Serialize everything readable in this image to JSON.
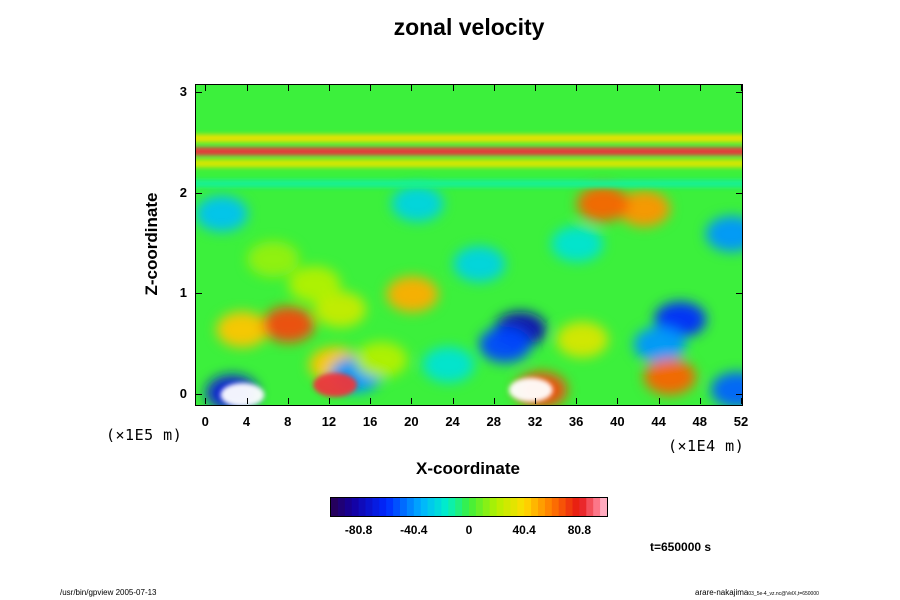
{
  "chart_data": {
    "type": "heatmap",
    "title": "zonal velocity",
    "xlabel": "X-coordinate",
    "ylabel": "Z-coordinate",
    "x_ticks": [
      "0",
      "4",
      "8",
      "12",
      "16",
      "20",
      "24",
      "28",
      "32",
      "36",
      "40",
      "44",
      "48",
      "52"
    ],
    "y_ticks": [
      "0",
      "1",
      "2",
      "3"
    ],
    "x_ticks_values": [
      0,
      4,
      8,
      12,
      16,
      20,
      24,
      28,
      32,
      36,
      40,
      44,
      48,
      52
    ],
    "y_ticks_values": [
      0,
      1,
      2,
      3
    ],
    "x_scale_text": "(×1E4 m)",
    "y_scale_text": "(×1E5 m)",
    "xlim": [
      -1,
      52
    ],
    "ylim": [
      -0.1,
      3.08
    ],
    "colorbar": {
      "min": -101,
      "max": 101,
      "tick_values": [
        -80.8,
        -40.4,
        0,
        40.4,
        80.8
      ],
      "tick_labels": [
        "-80.8",
        "-40.4",
        "0",
        "40.4",
        "80.8"
      ]
    },
    "features": [
      {
        "kind": "band",
        "z": 2.42,
        "value": 85
      },
      {
        "kind": "band",
        "z": 2.55,
        "value": 35
      },
      {
        "kind": "band",
        "z": 2.3,
        "value": 30
      },
      {
        "kind": "band",
        "z": 2.1,
        "value": -10
      },
      {
        "kind": "blob",
        "x": 3.5,
        "z": 0.0,
        "value": -101
      },
      {
        "kind": "blob",
        "x": 2.5,
        "z": 0.02,
        "value": -70
      },
      {
        "kind": "blob",
        "x": 31.5,
        "z": 0.05,
        "value": 101
      },
      {
        "kind": "blob",
        "x": 32.5,
        "z": 0.05,
        "value": 70
      },
      {
        "kind": "blob",
        "x": 12.5,
        "z": 0.1,
        "value": 85
      },
      {
        "kind": "blob",
        "x": 12.5,
        "z": 0.3,
        "value": 45
      },
      {
        "kind": "blob",
        "x": 30.5,
        "z": 0.65,
        "value": -80
      },
      {
        "kind": "blob",
        "x": 29.0,
        "z": 0.5,
        "value": -55
      },
      {
        "kind": "blob",
        "x": 46.0,
        "z": 0.75,
        "value": -60
      },
      {
        "kind": "blob",
        "x": 44.0,
        "z": 0.5,
        "value": -40
      },
      {
        "kind": "blob",
        "x": 3.5,
        "z": 0.65,
        "value": 45
      },
      {
        "kind": "blob",
        "x": 8.0,
        "z": 0.7,
        "value": 70
      },
      {
        "kind": "blob",
        "x": 45.0,
        "z": 0.18,
        "value": 65
      },
      {
        "kind": "blob",
        "x": 42.5,
        "z": 1.85,
        "value": 55
      },
      {
        "kind": "blob",
        "x": 38.5,
        "z": 1.9,
        "value": 65
      },
      {
        "kind": "blob",
        "x": 20.0,
        "z": 1.0,
        "value": 50
      },
      {
        "kind": "blob",
        "x": 13.0,
        "z": 0.85,
        "value": 25
      },
      {
        "kind": "blob",
        "x": 10.5,
        "z": 1.1,
        "value": 20
      },
      {
        "kind": "blob",
        "x": 1.5,
        "z": 1.8,
        "value": -30
      },
      {
        "kind": "blob",
        "x": 20.5,
        "z": 1.9,
        "value": -25
      },
      {
        "kind": "blob",
        "x": 14.5,
        "z": 0.2,
        "value": -40
      },
      {
        "kind": "blob",
        "x": 17.0,
        "z": 0.35,
        "value": 20
      },
      {
        "kind": "blob",
        "x": 23.5,
        "z": 0.3,
        "value": -20
      },
      {
        "kind": "blob",
        "x": 26.5,
        "z": 1.3,
        "value": -25
      },
      {
        "kind": "blob",
        "x": 36.0,
        "z": 1.5,
        "value": -20
      },
      {
        "kind": "blob",
        "x": 51.0,
        "z": 1.6,
        "value": -40
      },
      {
        "kind": "blob",
        "x": 51.5,
        "z": 0.05,
        "value": -50
      },
      {
        "kind": "blob",
        "x": 6.5,
        "z": 1.35,
        "value": 15
      },
      {
        "kind": "blob",
        "x": 36.5,
        "z": 0.55,
        "value": 30
      }
    ]
  },
  "time_label": "t=650000 s",
  "footer_left": "/usr/bin/gpview 2005-07-13",
  "footer_right": "arare-nakajima",
  "footer_right_sub": "03_5e-4_vz.nc@VelX,t=650000",
  "colors": {
    "background": "#ffffff",
    "frame": "#000000"
  }
}
